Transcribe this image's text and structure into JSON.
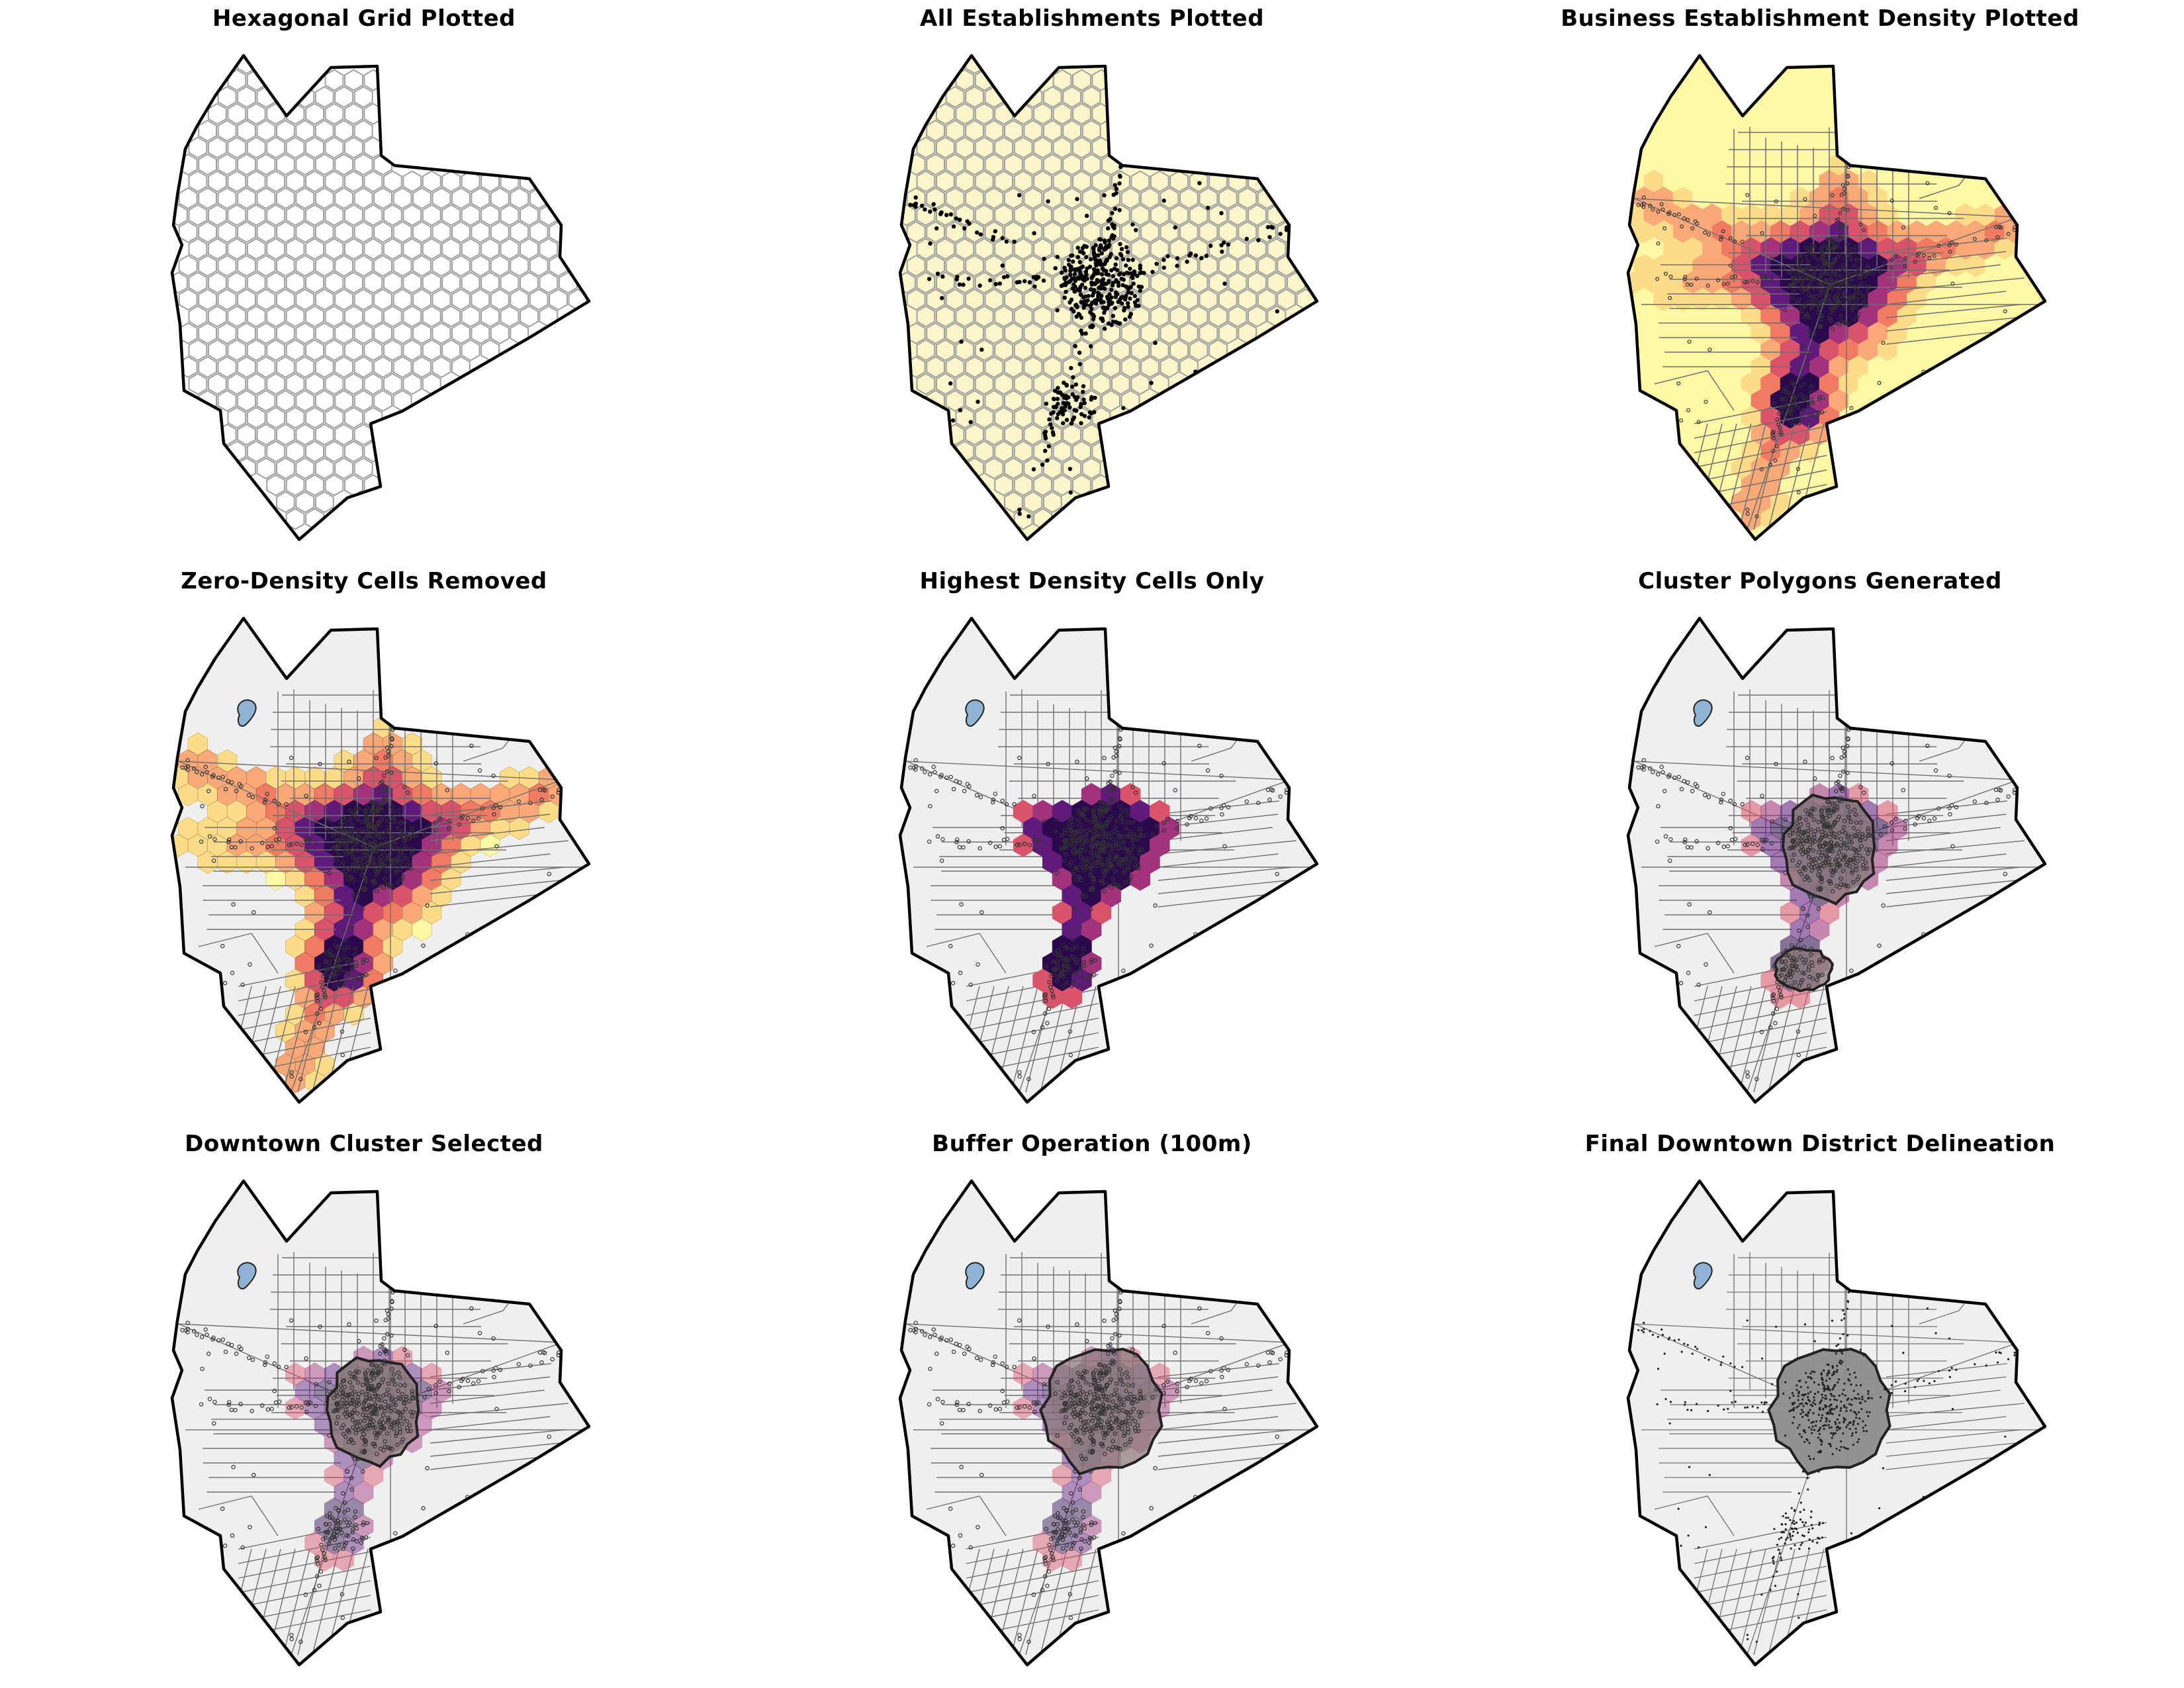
{
  "figure": {
    "panels": [
      {
        "key": "hex-grid",
        "title": "Hexagonal Grid Plotted"
      },
      {
        "key": "all-establishments",
        "title": "All Establishments Plotted"
      },
      {
        "key": "density",
        "title": "Business Establishment Density Plotted"
      },
      {
        "key": "zero-removed",
        "title": "Zero-Density Cells Removed"
      },
      {
        "key": "highest-density",
        "title": "Highest Density Cells Only"
      },
      {
        "key": "cluster-polygons",
        "title": "Cluster Polygons Generated"
      },
      {
        "key": "downtown-selected",
        "title": "Downtown Cluster Selected"
      },
      {
        "key": "buffer",
        "title": "Buffer Operation (100m)"
      },
      {
        "key": "final",
        "title": "Final Downtown District Delineation"
      }
    ]
  },
  "colors": {
    "boundary": "#000000",
    "hex_edge": "#a0a0a0",
    "yellow_fill": "#fbf6c9",
    "background_fill": "#efefef",
    "water": "#8fb3d3",
    "roads": "#707070",
    "density_ramp": [
      "#fdf8a6",
      "#fcdc88",
      "#f9a877",
      "#ef7b63",
      "#d9536a",
      "#a0337a",
      "#5f1a7c",
      "#2a0a4d"
    ],
    "cluster_fill": "#8a7878",
    "final_fill": "#8c8c8c"
  }
}
